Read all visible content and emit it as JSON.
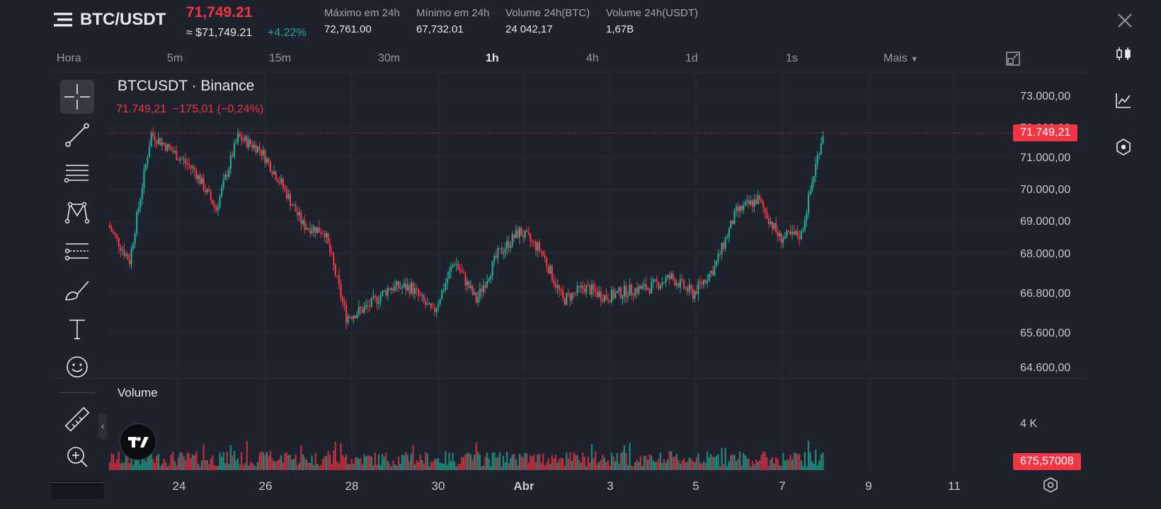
{
  "header": {
    "pair": "BTC/USDT",
    "last_price": "71,749.21",
    "usd_price": "≈ $71,749.21",
    "change_pct": "+4.22%",
    "stats": [
      {
        "label": "Máximo em 24h",
        "value": "72,761.00"
      },
      {
        "label": "Mínimo em 24h",
        "value": "67,732.01"
      },
      {
        "label": "Volume 24h(BTC)",
        "value": "24 042,17"
      },
      {
        "label": "Volume 24h(USDT)",
        "value": "1,67B"
      }
    ]
  },
  "timeframes": {
    "items": [
      "Hora",
      "5m",
      "15m",
      "30m",
      "1h",
      "4h",
      "1d",
      "1s",
      "Mais"
    ],
    "active": "1h"
  },
  "legend": {
    "title": "BTCUSDT · Binance",
    "values": "71.749,21  −175,01 (−0,24%)"
  },
  "volume_label": "Volume",
  "price_tag": "71.749,21",
  "volume_tag": "675,57008",
  "colors": {
    "up": "#22ab94",
    "down": "#f23645",
    "background": "#1e222d"
  },
  "left_tools": [
    "crosshair-icon",
    "trend-line-icon",
    "fib-levels-icon",
    "pattern-icon",
    "projection-icon",
    "brush-icon",
    "text-icon",
    "emoji-icon",
    "ruler-icon",
    "zoom-in-icon"
  ],
  "right_tools": [
    "candles-icon",
    "indicators-icon",
    "settings-hex-icon"
  ],
  "chart_data": {
    "type": "candlestick",
    "title": "BTCUSDT · Binance",
    "y_ticks": [
      "73.000,00",
      "72.000,00",
      "71.000,00",
      "70.000,00",
      "69.000,00",
      "68.000,00",
      "66.800,00",
      "65.600,00",
      "64.600,00"
    ],
    "y_tick_values": [
      73000,
      72000,
      71000,
      70000,
      69000,
      68000,
      66800,
      65600,
      64600
    ],
    "x_ticks": [
      "24",
      "26",
      "28",
      "30",
      "Abr",
      "3",
      "5",
      "7",
      "9",
      "11"
    ],
    "volume_ticks": [
      "4 K"
    ],
    "close_anchors": [
      {
        "date": "Mar 22 12h",
        "value": 68800
      },
      {
        "date": "Mar 23",
        "value": 67700
      },
      {
        "date": "Mar 23 12h",
        "value": 71700
      },
      {
        "date": "Mar 24",
        "value": 71100
      },
      {
        "date": "Mar 24 12h",
        "value": 70500
      },
      {
        "date": "Mar 25",
        "value": 69300
      },
      {
        "date": "Mar 25 12h",
        "value": 71600
      },
      {
        "date": "Mar 26",
        "value": 71200
      },
      {
        "date": "Mar 26 12h",
        "value": 70100
      },
      {
        "date": "Mar 27",
        "value": 68800
      },
      {
        "date": "Mar 27 12h",
        "value": 68600
      },
      {
        "date": "Mar 28",
        "value": 66000
      },
      {
        "date": "Mar 28 12h",
        "value": 66300
      },
      {
        "date": "Mar 29",
        "value": 66900
      },
      {
        "date": "Mar 29 12h",
        "value": 66900
      },
      {
        "date": "Mar 30",
        "value": 66100
      },
      {
        "date": "Mar 30 12h",
        "value": 67700
      },
      {
        "date": "Mar 31",
        "value": 66500
      },
      {
        "date": "Mar 31 12h",
        "value": 67900
      },
      {
        "date": "Abr 1",
        "value": 68600
      },
      {
        "date": "Abr 1 12h",
        "value": 68000
      },
      {
        "date": "Abr 2",
        "value": 66500
      },
      {
        "date": "Abr 2 12h",
        "value": 66900
      },
      {
        "date": "Abr 3",
        "value": 66600
      },
      {
        "date": "Abr 3 12h",
        "value": 66800
      },
      {
        "date": "Abr 4",
        "value": 66900
      },
      {
        "date": "Abr 4 12h",
        "value": 67200
      },
      {
        "date": "Abr 5",
        "value": 66700
      },
      {
        "date": "Abr 5 12h",
        "value": 67500
      },
      {
        "date": "Abr 6",
        "value": 69200
      },
      {
        "date": "Abr 6 12h",
        "value": 69600
      },
      {
        "date": "Abr 7",
        "value": 68400
      },
      {
        "date": "Abr 7 12h",
        "value": 68500
      },
      {
        "date": "Abr 8",
        "value": 71749.21
      }
    ]
  }
}
